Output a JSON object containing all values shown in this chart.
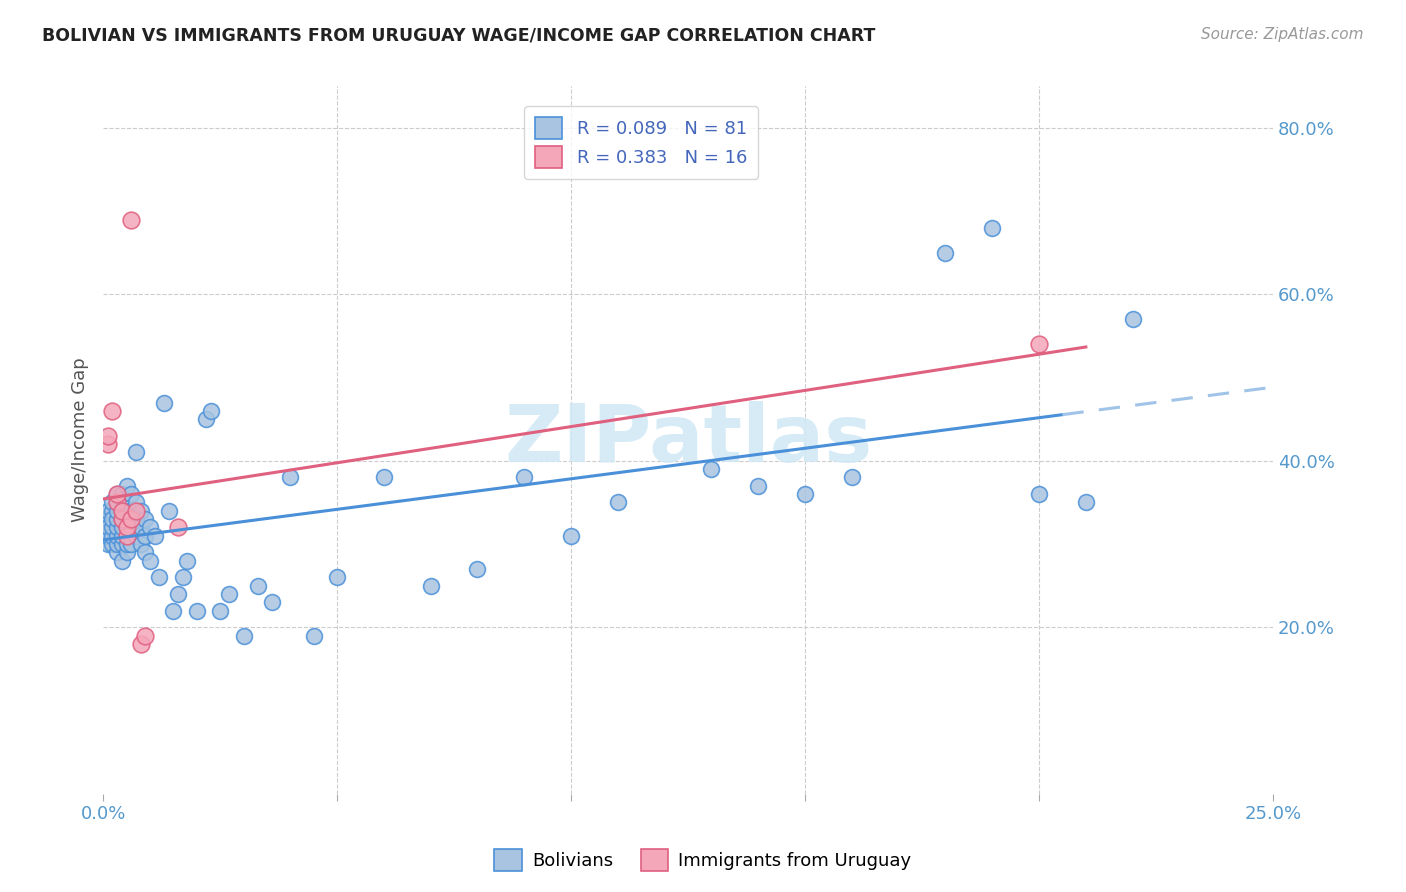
{
  "title": "BOLIVIAN VS IMMIGRANTS FROM URUGUAY WAGE/INCOME GAP CORRELATION CHART",
  "source": "Source: ZipAtlas.com",
  "ylabel": "Wage/Income Gap",
  "xlim": [
    0.0,
    0.25
  ],
  "ylim": [
    0.0,
    0.85
  ],
  "xtick_positions": [
    0.0,
    0.05,
    0.1,
    0.15,
    0.2,
    0.25
  ],
  "xticklabels": [
    "0.0%",
    "",
    "",
    "",
    "",
    "25.0%"
  ],
  "yticks_right": [
    0.2,
    0.4,
    0.6,
    0.8
  ],
  "ytick_labels_right": [
    "20.0%",
    "40.0%",
    "60.0%",
    "80.0%"
  ],
  "legend_r1": "0.089",
  "legend_n1": "81",
  "legend_r2": "0.383",
  "legend_n2": "16",
  "color_blue": "#a8c4e0",
  "color_pink": "#f4a7b9",
  "line_blue": "#4a90d9",
  "line_pink": "#e06080",
  "line_dashed_color": "#a0c4e8",
  "bolivians_x": [
    0.001,
    0.001,
    0.001,
    0.001,
    0.001,
    0.002,
    0.002,
    0.002,
    0.002,
    0.002,
    0.002,
    0.003,
    0.003,
    0.003,
    0.003,
    0.003,
    0.003,
    0.003,
    0.003,
    0.004,
    0.004,
    0.004,
    0.004,
    0.004,
    0.004,
    0.004,
    0.005,
    0.005,
    0.005,
    0.005,
    0.005,
    0.006,
    0.006,
    0.006,
    0.006,
    0.007,
    0.007,
    0.007,
    0.007,
    0.008,
    0.008,
    0.008,
    0.009,
    0.009,
    0.009,
    0.01,
    0.01,
    0.011,
    0.012,
    0.013,
    0.014,
    0.015,
    0.016,
    0.017,
    0.018,
    0.02,
    0.022,
    0.023,
    0.025,
    0.027,
    0.03,
    0.033,
    0.036,
    0.04,
    0.045,
    0.05,
    0.06,
    0.07,
    0.08,
    0.09,
    0.1,
    0.11,
    0.13,
    0.14,
    0.15,
    0.16,
    0.18,
    0.19,
    0.2,
    0.21,
    0.22
  ],
  "bolivians_y": [
    0.33,
    0.34,
    0.3,
    0.31,
    0.32,
    0.34,
    0.35,
    0.3,
    0.31,
    0.32,
    0.33,
    0.29,
    0.3,
    0.31,
    0.32,
    0.33,
    0.34,
    0.35,
    0.36,
    0.28,
    0.3,
    0.31,
    0.32,
    0.33,
    0.34,
    0.36,
    0.29,
    0.3,
    0.32,
    0.34,
    0.37,
    0.3,
    0.32,
    0.34,
    0.36,
    0.31,
    0.33,
    0.35,
    0.41,
    0.3,
    0.32,
    0.34,
    0.29,
    0.31,
    0.33,
    0.28,
    0.32,
    0.31,
    0.26,
    0.47,
    0.34,
    0.22,
    0.24,
    0.26,
    0.28,
    0.22,
    0.45,
    0.46,
    0.22,
    0.24,
    0.19,
    0.25,
    0.23,
    0.38,
    0.19,
    0.26,
    0.38,
    0.25,
    0.27,
    0.38,
    0.31,
    0.35,
    0.39,
    0.37,
    0.36,
    0.38,
    0.65,
    0.68,
    0.36,
    0.35,
    0.57
  ],
  "uruguay_x": [
    0.001,
    0.001,
    0.002,
    0.003,
    0.003,
    0.004,
    0.004,
    0.005,
    0.005,
    0.006,
    0.006,
    0.007,
    0.008,
    0.009,
    0.016,
    0.2
  ],
  "uruguay_y": [
    0.42,
    0.43,
    0.46,
    0.35,
    0.36,
    0.33,
    0.34,
    0.31,
    0.32,
    0.69,
    0.33,
    0.34,
    0.18,
    0.19,
    0.32,
    0.54
  ],
  "background_color": "#ffffff",
  "grid_color": "#cccccc",
  "watermark_text": "ZIPatlas",
  "watermark_color": "#d0e8f5"
}
